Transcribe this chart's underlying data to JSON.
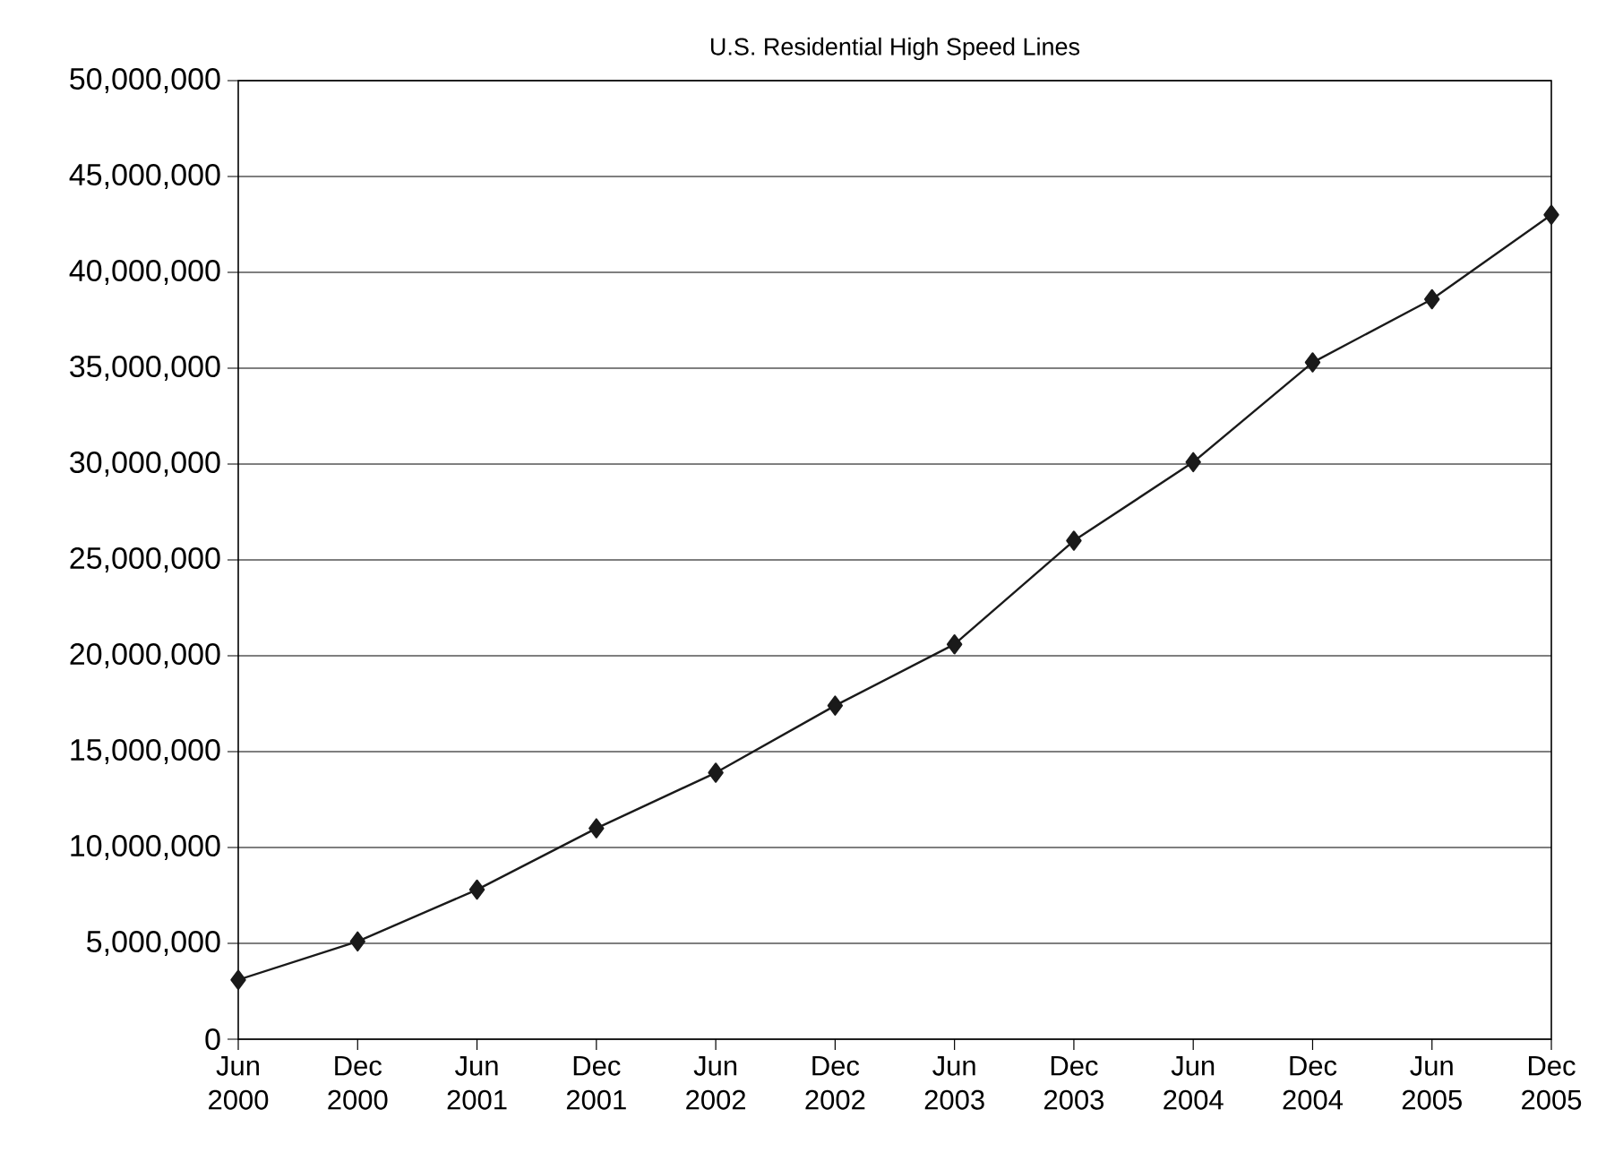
{
  "chart_data": {
    "type": "line",
    "title": "U.S. Residential High Speed Lines",
    "categories": [
      "Jun 2000",
      "Dec 2000",
      "Jun 2001",
      "Dec 2001",
      "Jun 2002",
      "Dec 2002",
      "Jun 2003",
      "Dec 2003",
      "Jun 2004",
      "Dec 2004",
      "Jun 2005",
      "Dec 2005"
    ],
    "series": [
      {
        "color": "#1a1a1a",
        "values": [
          3100000,
          5100000,
          7800000,
          11000000,
          13900000,
          17400000,
          20600000,
          26000000,
          30100000,
          35300000,
          38600000,
          43000000
        ]
      }
    ],
    "ylim": [
      0,
      50000000
    ],
    "yticks": [
      {
        "value": 0,
        "label": "0"
      },
      {
        "value": 5000000,
        "label": "5,000,000"
      },
      {
        "value": 10000000,
        "label": "10,000,000"
      },
      {
        "value": 15000000,
        "label": "15,000,000"
      },
      {
        "value": 20000000,
        "label": "20,000,000"
      },
      {
        "value": 25000000,
        "label": "25,000,000"
      },
      {
        "value": 30000000,
        "label": "30,000,000"
      },
      {
        "value": 35000000,
        "label": "35,000,000"
      },
      {
        "value": 40000000,
        "label": "40,000,000"
      },
      {
        "value": 45000000,
        "label": "45,000,000"
      },
      {
        "value": 50000000,
        "label": "50,000,000"
      }
    ],
    "grid": "y",
    "marker": "diamond",
    "line_style": "solid"
  }
}
